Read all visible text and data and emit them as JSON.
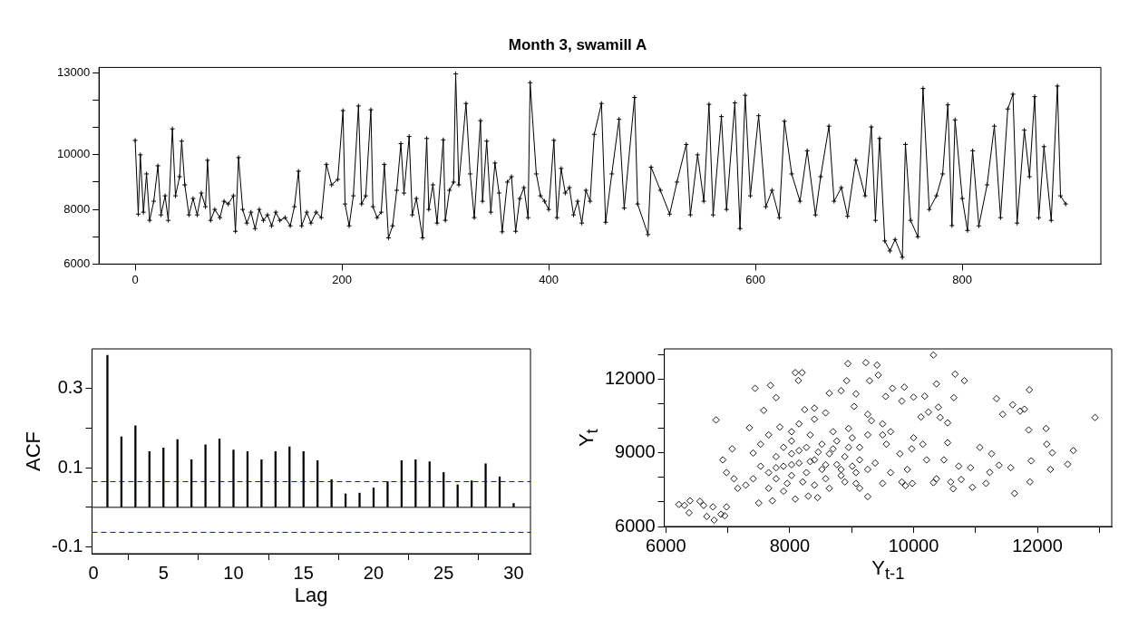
{
  "chart_data": [
    {
      "type": "line",
      "title": "Month 3, swamill A",
      "marker": "cross",
      "color": "#000000",
      "x": [
        0,
        3,
        5,
        8,
        11,
        14,
        18,
        22,
        25,
        29,
        32,
        36,
        39,
        43,
        45,
        48,
        52,
        56,
        60,
        64,
        68,
        70,
        73,
        77,
        82,
        86,
        90,
        95,
        97,
        100,
        104,
        108,
        112,
        116,
        120,
        124,
        128,
        132,
        136,
        140,
        145,
        150,
        154,
        158,
        161,
        166,
        170,
        175,
        180,
        185,
        190,
        196,
        201,
        203,
        207,
        211,
        216,
        219,
        223,
        228,
        230,
        234,
        238,
        241,
        245,
        249,
        253,
        257,
        260,
        265,
        268,
        272,
        278,
        282,
        284,
        288,
        292,
        298,
        300,
        304,
        308,
        310,
        313,
        320,
        324,
        328,
        334,
        336,
        340,
        344,
        348,
        352,
        355,
        360,
        364,
        368,
        372,
        376,
        380,
        382,
        388,
        392,
        396,
        400,
        405,
        408,
        412,
        416,
        420,
        424,
        428,
        432,
        436,
        440,
        444,
        451,
        455,
        461,
        468,
        473,
        483,
        486,
        496,
        499,
        508,
        517,
        524,
        533,
        537,
        544,
        550,
        555,
        559,
        567,
        572,
        580,
        585,
        590,
        595,
        603,
        610,
        616,
        623,
        628,
        635,
        643,
        650,
        658,
        663,
        671,
        676,
        683,
        689,
        697,
        706,
        712,
        716,
        720,
        725,
        730,
        735,
        742,
        745,
        750,
        757,
        762,
        768,
        775,
        781,
        786,
        790,
        793,
        800,
        805,
        810,
        816,
        824,
        831,
        837,
        844,
        849,
        853,
        860,
        865,
        870,
        874,
        879,
        886,
        892,
        895,
        900
      ],
      "values": [
        10530,
        7830,
        10000,
        7900,
        9300,
        7600,
        8300,
        9600,
        7800,
        8500,
        7600,
        10950,
        8500,
        9200,
        10500,
        8900,
        7800,
        8400,
        7800,
        8600,
        8100,
        9800,
        7600,
        8000,
        7700,
        8300,
        8200,
        8500,
        7200,
        9900,
        8000,
        7500,
        7900,
        7300,
        8000,
        7600,
        7800,
        7400,
        7900,
        7600,
        7700,
        7400,
        8100,
        9400,
        7400,
        7900,
        7500,
        7900,
        7700,
        9650,
        8900,
        9100,
        11620,
        8200,
        7400,
        8500,
        11790,
        8200,
        8500,
        11650,
        8100,
        7700,
        7900,
        9650,
        6960,
        7400,
        8700,
        10410,
        8600,
        10670,
        7800,
        8400,
        6960,
        10600,
        8000,
        8900,
        7500,
        10550,
        7600,
        8700,
        9000,
        12960,
        8900,
        11880,
        9300,
        7700,
        11250,
        8300,
        10500,
        7900,
        9700,
        8600,
        7180,
        9000,
        9200,
        7200,
        8400,
        8800,
        7700,
        12640,
        9300,
        8500,
        8300,
        8000,
        10530,
        7700,
        9500,
        8600,
        8800,
        7800,
        8300,
        7500,
        8700,
        8300,
        10750,
        11880,
        7530,
        9300,
        11300,
        8050,
        12100,
        8200,
        7080,
        9550,
        8700,
        7830,
        9000,
        10380,
        7800,
        10000,
        8300,
        11850,
        7800,
        11400,
        8000,
        11900,
        7300,
        12180,
        8500,
        11430,
        8100,
        8700,
        7700,
        11230,
        9300,
        8300,
        10150,
        7800,
        9200,
        11050,
        8300,
        8800,
        7750,
        9800,
        8500,
        11020,
        7600,
        10600,
        6850,
        6480,
        6900,
        6250,
        10380,
        7600,
        7000,
        12430,
        8000,
        8500,
        9300,
        11830,
        7410,
        11280,
        8400,
        7230,
        10150,
        7400,
        8900,
        11050,
        7700,
        11680,
        12220,
        7500,
        10900,
        9200,
        12130,
        7700,
        10300,
        7600,
        12520,
        8500,
        8200
      ],
      "xlim": [
        -35,
        934
      ],
      "xticks": [
        0,
        200,
        400,
        600,
        800
      ],
      "ylim": [
        6000,
        13200
      ],
      "yticks": [
        6000,
        {
          "value": 7000,
          "label": null
        },
        8000,
        {
          "value": 9000,
          "label": null
        },
        10000,
        {
          "value": 11000,
          "label": null
        },
        {
          "value": 12000,
          "label": null
        },
        13000
      ]
    },
    {
      "type": "bar",
      "xlabel": "Lag",
      "ylabel": "ACF",
      "color": "#000000",
      "x": [
        1,
        2,
        3,
        4,
        5,
        6,
        7,
        8,
        9,
        10,
        11,
        12,
        13,
        14,
        15,
        16,
        17,
        18,
        19,
        20,
        21,
        22,
        23,
        24,
        25,
        26,
        27,
        28,
        29,
        30
      ],
      "values": [
        0.384,
        0.178,
        0.206,
        0.141,
        0.15,
        0.171,
        0.12,
        0.158,
        0.173,
        0.145,
        0.141,
        0.12,
        0.141,
        0.153,
        0.141,
        0.118,
        0.07,
        0.034,
        0.036,
        0.049,
        0.065,
        0.118,
        0.12,
        0.115,
        0.088,
        0.057,
        0.067,
        0.11,
        0.077,
        0.01
      ],
      "xlim": [
        -0.1,
        31.2
      ],
      "xticks": [
        0,
        5,
        10,
        15,
        20,
        25,
        30
      ],
      "ylim": [
        -0.117,
        0.4
      ],
      "yticks": [
        -0.1,
        {
          "value": 0,
          "label": null
        },
        0.1,
        {
          "value": 0.2,
          "label": null
        },
        0.3
      ],
      "ref_lines": [
        {
          "axis": "y",
          "value": 0,
          "color": "#000000",
          "line_style": "solid"
        },
        {
          "axis": "y",
          "value": 0.065,
          "color": "#0000ff",
          "line_style": "dashed"
        },
        {
          "axis": "y",
          "value": -0.063,
          "color": "#0000ff",
          "line_style": "dashed"
        }
      ]
    },
    {
      "type": "scatter",
      "xlabel": "Y$_{t-1}$",
      "ylabel": "Y$_{t}$",
      "marker": "diamond",
      "color": "#000000",
      "x": [
        6210,
        6300,
        6390,
        6375,
        6550,
        6610,
        6760,
        6660,
        6780,
        6890,
        6980,
        6950,
        6810,
        7350,
        7440,
        7580,
        7690,
        7780,
        8090,
        8200,
        8140,
        8940,
        9230,
        9410,
        9430,
        9290,
        8920,
        10320,
        10670,
        10820,
        10370,
        9660,
        9850,
        10180,
        10000,
        9550,
        9810,
        10650,
        11340,
        11600,
        11870,
        11720,
        11790,
        11440,
        12930,
        12140,
        11860,
        12150,
        12240,
        12580,
        12490,
        12210,
        11900,
        11880,
        11630,
        11570,
        11380,
        11230,
        11170,
        11070,
        11260,
        10950,
        10640,
        10770,
        10600,
        10320,
        10370,
        10550,
        10430,
        10550,
        10400,
        10240,
        10120,
        10000,
        10150,
        10210,
        10490,
        10730,
        10920,
        9900,
        9810,
        9980,
        9260,
        9870,
        9630,
        9500,
        9130,
        9780,
        9970,
        7660,
        7780,
        7900,
        8030,
        8150,
        8270,
        8400,
        8520,
        8640,
        8760,
        8890,
        9010,
        9130,
        9260,
        9380,
        8030,
        8270,
        8520,
        8760,
        9010,
        9260,
        7780,
        7530,
        7410,
        7290,
        7160,
        7100,
        6980,
        6920,
        7070,
        7410,
        7660,
        7900,
        8090,
        7720,
        7500,
        8300,
        8450,
        8640,
        8890,
        9070,
        8400,
        8580,
        8640,
        8830,
        8400,
        8240,
        9070,
        9040,
        9260,
        9320,
        9500,
        9630,
        8030,
        8150,
        7840,
        7660,
        7530,
        8030,
        8330,
        8700,
        8950,
        9500,
        9560,
        8210,
        8400,
        7960,
        8580,
        8830,
        7780,
        8030,
        8330,
        8580,
        8460,
        8150,
        7900,
        8700,
        8950,
        9130,
        9070,
        8830
      ],
      "values": [
        6900,
        6860,
        7050,
        6560,
        7030,
        6860,
        6800,
        6410,
        6260,
        6500,
        6800,
        6440,
        10350,
        10030,
        11640,
        10740,
        11760,
        11260,
        12280,
        12280,
        11960,
        12650,
        12690,
        12590,
        12180,
        11950,
        11950,
        13000,
        12220,
        11950,
        11820,
        11640,
        11690,
        11320,
        11280,
        11310,
        11120,
        11260,
        11220,
        10970,
        11580,
        10710,
        10790,
        10580,
        10450,
        10000,
        9940,
        9360,
        9010,
        9100,
        8540,
        8330,
        8680,
        7820,
        7350,
        8400,
        8500,
        8210,
        7760,
        9230,
        8970,
        7600,
        7540,
        7920,
        7820,
        7790,
        7950,
        9420,
        10450,
        10230,
        10870,
        10670,
        10470,
        9620,
        9360,
        8720,
        8720,
        8460,
        8400,
        8330,
        7820,
        7760,
        7220,
        7670,
        8200,
        7760,
        7560,
        8970,
        9170,
        8200,
        7950,
        8460,
        8080,
        8590,
        8200,
        8720,
        8330,
        8970,
        8530,
        8850,
        8460,
        8720,
        8330,
        8590,
        8970,
        9230,
        9360,
        9490,
        9620,
        9740,
        8850,
        8460,
        7950,
        7690,
        7560,
        7950,
        8200,
        8720,
        9170,
        9000,
        7560,
        7440,
        7120,
        7050,
        6960,
        7240,
        7180,
        7560,
        7820,
        7760,
        10380,
        10640,
        11440,
        11540,
        10830,
        10770,
        11410,
        10900,
        10580,
        10320,
        10190,
        9870,
        9870,
        10190,
        10060,
        9740,
        9360,
        9490,
        9740,
        9870,
        10000,
        9740,
        9360,
        7820,
        7690,
        7760,
        7950,
        8080,
        8400,
        8520,
        8650,
        8520,
        9040,
        9100,
        9230,
        9170,
        9230,
        9230,
        8200,
        8330
      ],
      "xlim": [
        5975,
        13200
      ],
      "xticks": [
        6000,
        {
          "value": 7000,
          "label": null
        },
        8000,
        {
          "value": 9000,
          "label": null
        },
        10000,
        {
          "value": 11000,
          "label": null
        },
        12000,
        {
          "value": 13000,
          "label": null
        }
      ],
      "ylim": [
        6000,
        13250
      ],
      "yticks": [
        6000,
        {
          "value": 7000,
          "label": null
        },
        {
          "value": 8000,
          "label": null
        },
        9000,
        {
          "value": 10000,
          "label": null
        },
        {
          "value": 11000,
          "label": null
        },
        12000,
        {
          "value": 13000,
          "label": null
        }
      ]
    }
  ]
}
